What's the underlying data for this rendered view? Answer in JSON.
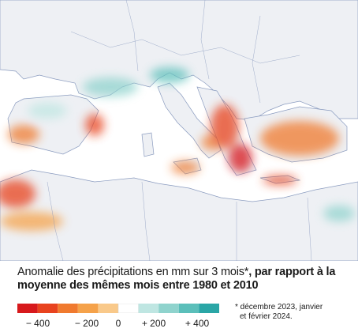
{
  "caption": {
    "regular": "Anomalie des précipitations en mm sur 3 mois*",
    "bold": ", par rapport à la moyenne des mêmes mois entre 1980 et 2010"
  },
  "legend": {
    "colors": [
      "#d7191c",
      "#e8431f",
      "#f07a2f",
      "#f5a24a",
      "#f9c98a",
      "#ffffff",
      "#bfe6e2",
      "#8fd3cd",
      "#5bbfba",
      "#2aa6a6"
    ],
    "labels": [
      "− 400",
      "− 200",
      "0",
      "+ 200",
      "+ 400"
    ]
  },
  "footnote": [
    "* décembre 2023, janvier",
    "et février 2024."
  ]
}
